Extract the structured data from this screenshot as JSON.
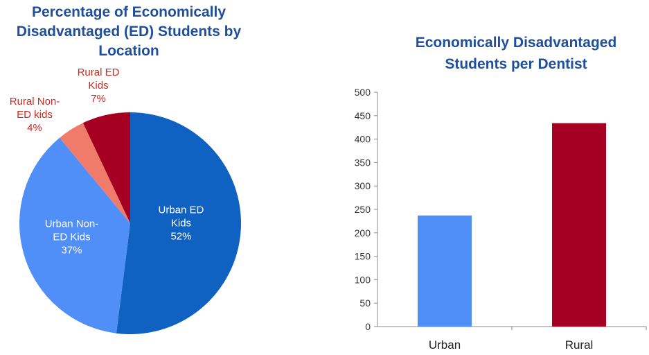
{
  "chart_data": [
    {
      "type": "pie",
      "title": "Percentage of Economically\nDisadvantaged (ED) Students by\nLocation",
      "slices": [
        {
          "label": "Urban ED Kids",
          "value": 52,
          "display": "52%",
          "color": "#0f62c1"
        },
        {
          "label": "Urban Non-ED Kids",
          "value": 37,
          "display": "37%",
          "color": "#4f8ff7"
        },
        {
          "label": "Rural Non-ED kids",
          "value": 4,
          "display": "4%",
          "color": "#f07b6b"
        },
        {
          "label": "Rural ED Kids",
          "value": 7,
          "display": "7%",
          "color": "#a50021"
        }
      ]
    },
    {
      "type": "bar",
      "title": "Economically Disadvantaged\nStudents per Dentist",
      "categories": [
        "Urban",
        "Rural"
      ],
      "values": [
        237,
        434
      ],
      "colors": [
        "#4f8ff7",
        "#a50021"
      ],
      "ylim": [
        0,
        500
      ],
      "yticks": [
        0,
        50,
        100,
        150,
        200,
        250,
        300,
        350,
        400,
        450,
        500
      ],
      "grid": false,
      "legend": "none"
    }
  ]
}
